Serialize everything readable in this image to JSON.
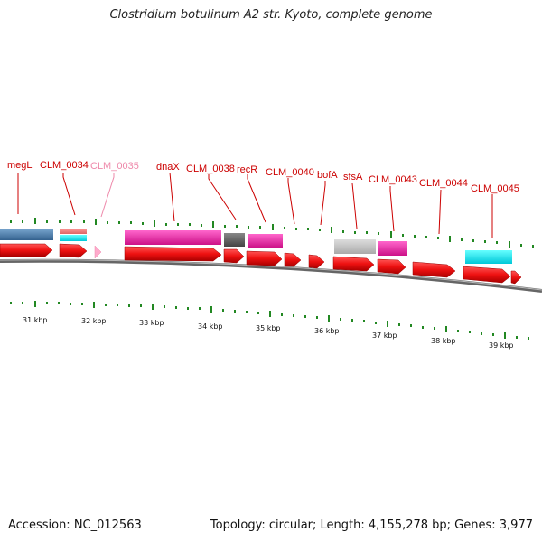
{
  "title": "Clostridium botulinum A2 str. Kyoto, complete genome",
  "footer": {
    "accession": "Accession: NC_012563",
    "summary": "Topology: circular; Length: 4,155,278 bp; Genes: 3,977"
  },
  "colors": {
    "gene_label": "#cc0000",
    "pseudo_label": "#ee88aa",
    "cds_arrow": "#ee1111",
    "pseudo_arrow": "#ffaacc",
    "backbone": "#777777",
    "tick": "#228822"
  },
  "gene_labels": [
    {
      "id": "megL",
      "text": "megL",
      "pseudo": false
    },
    {
      "id": "clm0034",
      "text": "CLM_0034",
      "pseudo": false
    },
    {
      "id": "clm0035",
      "text": "CLM_0035",
      "pseudo": true
    },
    {
      "id": "dnax",
      "text": "dnaX",
      "pseudo": false
    },
    {
      "id": "clm0038",
      "text": "CLM_0038",
      "pseudo": false
    },
    {
      "id": "recr",
      "text": "recR",
      "pseudo": false
    },
    {
      "id": "clm0040",
      "text": "CLM_0040",
      "pseudo": false
    },
    {
      "id": "bofa",
      "text": "bofA",
      "pseudo": false
    },
    {
      "id": "sfsa",
      "text": "sfsA",
      "pseudo": false
    },
    {
      "id": "clm0043",
      "text": "CLM_0043",
      "pseudo": false
    },
    {
      "id": "clm0044",
      "text": "CLM_0044",
      "pseudo": false
    },
    {
      "id": "clm0045",
      "text": "CLM_0045",
      "pseudo": false
    }
  ],
  "scale_labels": [
    "31 kbp",
    "32 kbp",
    "33 kbp",
    "34 kbp",
    "35 kbp",
    "36 kbp",
    "37 kbp",
    "38 kbp",
    "39 kbp"
  ]
}
